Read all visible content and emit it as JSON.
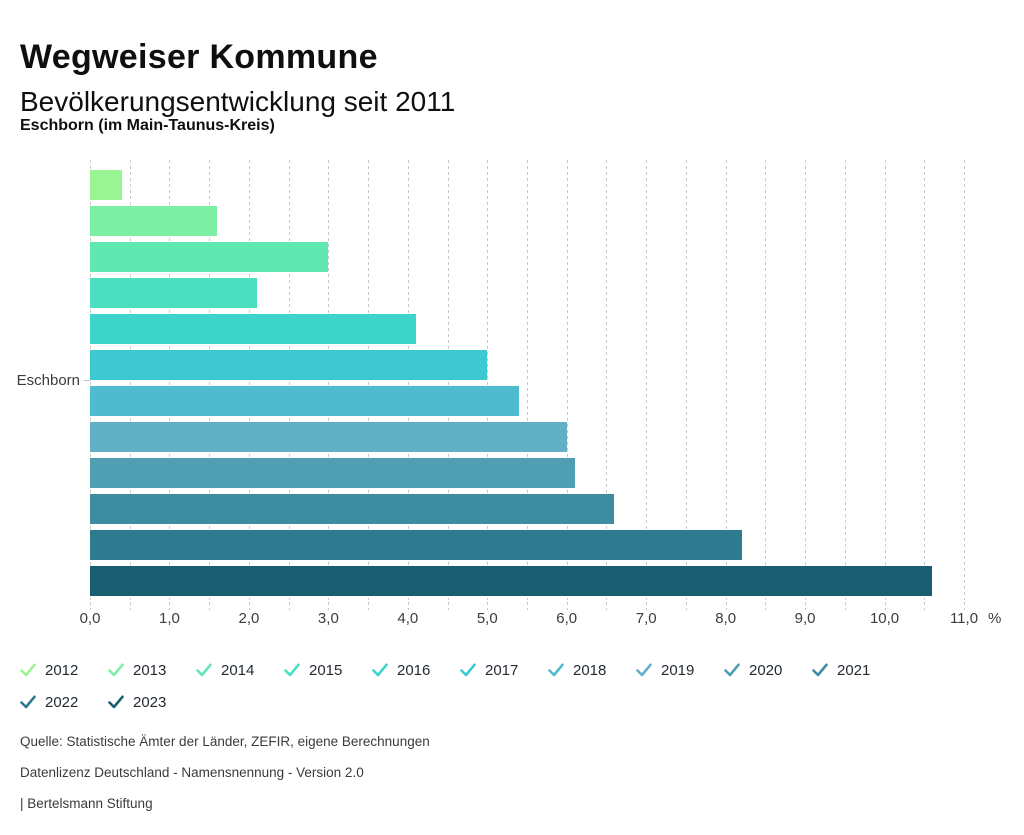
{
  "header": {
    "title": "Wegweiser Kommune",
    "subtitle": "Bevölkerungsentwicklung seit 2011",
    "region": "Eschborn (im Main-Taunus-Kreis)"
  },
  "chart_data": {
    "type": "bar",
    "orientation": "horizontal",
    "category_label": "Eschborn",
    "unit": "%",
    "xlim": [
      0,
      11
    ],
    "grid_step": 0.5,
    "tick_step": 1.0,
    "tick_labels": [
      "0,0",
      "1,0",
      "2,0",
      "3,0",
      "4,0",
      "5,0",
      "6,0",
      "7,0",
      "8,0",
      "9,0",
      "10,0",
      "11,0"
    ],
    "grid": true,
    "legend_position": "bottom",
    "series": [
      {
        "name": "2012",
        "value": 0.4,
        "color": "#99F593"
      },
      {
        "name": "2013",
        "value": 1.6,
        "color": "#7DEFA4"
      },
      {
        "name": "2014",
        "value": 3.0,
        "color": "#60E7B2"
      },
      {
        "name": "2015",
        "value": 2.1,
        "color": "#4BDFBF"
      },
      {
        "name": "2016",
        "value": 4.1,
        "color": "#3DD5C9"
      },
      {
        "name": "2017",
        "value": 5.0,
        "color": "#3EC9D0"
      },
      {
        "name": "2018",
        "value": 5.4,
        "color": "#4EBCCE"
      },
      {
        "name": "2019",
        "value": 6.0,
        "color": "#62B0C6"
      },
      {
        "name": "2020",
        "value": 6.1,
        "color": "#4F9EB2"
      },
      {
        "name": "2021",
        "value": 6.6,
        "color": "#3E8CA0"
      },
      {
        "name": "2022",
        "value": 8.2,
        "color": "#2E7A8F"
      },
      {
        "name": "2023",
        "value": 10.6,
        "color": "#185E70"
      }
    ]
  },
  "footer": {
    "source": "Quelle: Statistische Ämter der Länder, ZEFIR, eigene Berechnungen",
    "license": "Datenlizenz Deutschland - Namensnennung - Version 2.0",
    "attribution": "| Bertelsmann Stiftung"
  }
}
